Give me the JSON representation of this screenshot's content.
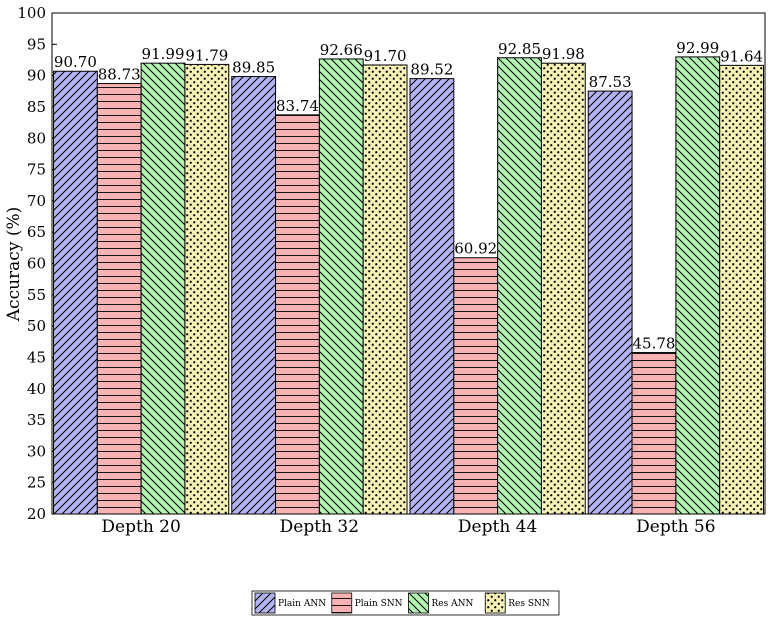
{
  "chart_data": {
    "type": "bar",
    "title": "",
    "xlabel": "",
    "ylabel": "Accuracy (%)",
    "ylim": [
      20,
      100
    ],
    "yticks": [
      20,
      25,
      30,
      35,
      40,
      45,
      50,
      55,
      60,
      65,
      70,
      75,
      80,
      85,
      90,
      95,
      100
    ],
    "categories": [
      "Depth 20",
      "Depth 32",
      "Depth 44",
      "Depth 56"
    ],
    "series": [
      {
        "name": "Plain ANN",
        "values": [
          90.7,
          89.85,
          89.52,
          87.53
        ],
        "labels": [
          "90.70",
          "89.85",
          "89.52",
          "87.53"
        ],
        "color": "#b3b3f2",
        "pattern": "diagonal-up"
      },
      {
        "name": "Plain SNN",
        "values": [
          88.73,
          83.74,
          60.92,
          45.78
        ],
        "labels": [
          "88.73",
          "83.74",
          "60.92",
          "45.78"
        ],
        "color": "#f7b3b3",
        "pattern": "horizontal"
      },
      {
        "name": "Res ANN",
        "values": [
          91.99,
          92.66,
          92.85,
          92.99
        ],
        "labels": [
          "91.99",
          "92.66",
          "92.85",
          "92.99"
        ],
        "color": "#b3f2b3",
        "pattern": "diagonal-down"
      },
      {
        "name": "Res SNN",
        "values": [
          91.79,
          91.7,
          91.98,
          91.64
        ],
        "labels": [
          "91.79",
          "91.70",
          "91.98",
          "91.64"
        ],
        "color": "#f7f2b3",
        "pattern": "dots"
      }
    ],
    "legend_position": "bottom-center",
    "grid": false
  }
}
